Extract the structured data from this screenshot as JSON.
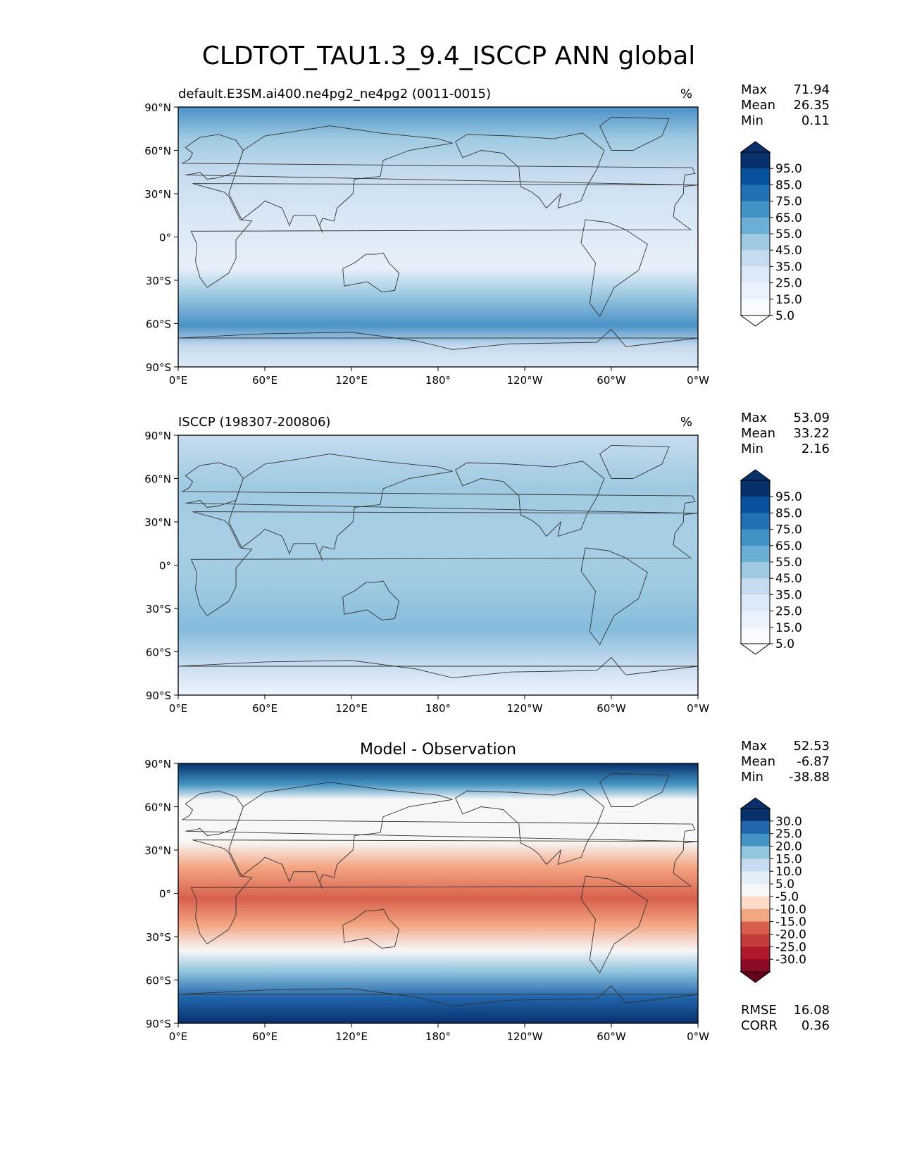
{
  "figure": {
    "title": "CLDTOT_TAU1.3_9.4_ISCCP ANN global"
  },
  "axes": {
    "lat_ticks": [
      "90°N",
      "60°N",
      "30°N",
      "0°",
      "30°S",
      "60°S",
      "90°S"
    ],
    "lon_ticks": [
      "0°E",
      "60°E",
      "120°E",
      "180°",
      "120°W",
      "60°W",
      "0°W"
    ]
  },
  "panels": [
    {
      "id": "test",
      "left_title": "default.E3SM.ai400.ne4pg2_ne4pg2 (0011-0015)",
      "center_title": "",
      "units": "%",
      "stats": [
        {
          "label": "Max",
          "value": "71.94"
        },
        {
          "label": "Mean",
          "value": "26.35"
        },
        {
          "label": "Min",
          "value": "0.11"
        }
      ],
      "colorbar": {
        "labels": [
          "95.0",
          "85.0",
          "75.0",
          "65.0",
          "55.0",
          "45.0",
          "35.0",
          "25.0",
          "15.0",
          "5.0"
        ],
        "colors": [
          "#08306b",
          "#08519c",
          "#2171b5",
          "#4292c6",
          "#6baed6",
          "#9ecae1",
          "#c6dbef",
          "#dbe9f6",
          "#eaf2fb",
          "#f7fbff"
        ],
        "top_extend": "#08306b",
        "bottom_extend": "#ffffff"
      },
      "extra_stats": []
    },
    {
      "id": "reference",
      "left_title": "ISCCP (198307-200806)",
      "center_title": "",
      "units": "%",
      "stats": [
        {
          "label": "Max",
          "value": "53.09"
        },
        {
          "label": "Mean",
          "value": "33.22"
        },
        {
          "label": "Min",
          "value": "2.16"
        }
      ],
      "colorbar": {
        "labels": [
          "95.0",
          "85.0",
          "75.0",
          "65.0",
          "55.0",
          "45.0",
          "35.0",
          "25.0",
          "15.0",
          "5.0"
        ],
        "colors": [
          "#08306b",
          "#08519c",
          "#2171b5",
          "#4292c6",
          "#6baed6",
          "#9ecae1",
          "#c6dbef",
          "#dbe9f6",
          "#eaf2fb",
          "#f7fbff"
        ],
        "top_extend": "#08306b",
        "bottom_extend": "#ffffff"
      },
      "extra_stats": []
    },
    {
      "id": "difference",
      "left_title": "",
      "center_title": "Model - Observation",
      "units": "",
      "stats": [
        {
          "label": "Max",
          "value": "52.53"
        },
        {
          "label": "Mean",
          "value": "-6.87"
        },
        {
          "label": "Min",
          "value": "-38.88"
        }
      ],
      "colorbar": {
        "labels": [
          "30.0",
          "25.0",
          "20.0",
          "15.0",
          "10.0",
          "5.0",
          "-5.0",
          "-10.0",
          "-15.0",
          "-20.0",
          "-25.0",
          "-30.0"
        ],
        "colors": [
          "#08306b",
          "#2166ac",
          "#4393c3",
          "#92c5de",
          "#c6dbef",
          "#e3eef7",
          "#f7f7f7",
          "#fddbc7",
          "#f4a582",
          "#d6604d",
          "#c43c3c",
          "#b2182b",
          "#8b0a26"
        ],
        "top_extend": "#08306b",
        "bottom_extend": "#67001f"
      },
      "extra_stats": [
        {
          "label": "RMSE",
          "value": "16.08"
        },
        {
          "label": "CORR",
          "value": "0.36"
        }
      ]
    }
  ]
}
